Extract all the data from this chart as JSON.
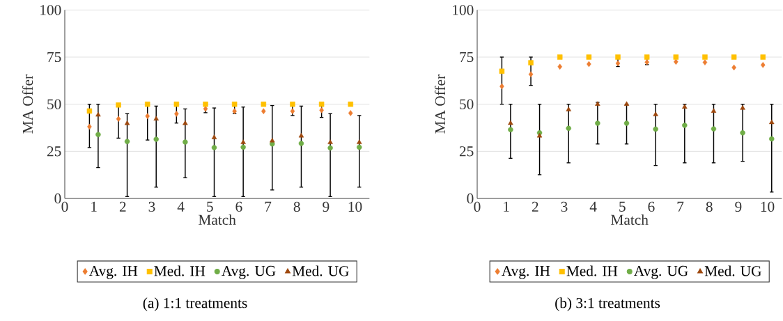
{
  "chart_data": [
    {
      "type": "scatter",
      "xlabel": "Match",
      "ylabel": "MA Offer",
      "xlim": [
        0,
        10.5
      ],
      "ylim": [
        0,
        100
      ],
      "xticks": [
        0,
        1,
        2,
        3,
        4,
        5,
        6,
        7,
        8,
        9,
        10
      ],
      "yticks": [
        0,
        25,
        50,
        75,
        100
      ],
      "grid": "y",
      "legend": "bottom",
      "annotations": [
        "(a) 1:1 treatments"
      ],
      "series": [
        {
          "name": "Avg. IH",
          "color": "#ed7d31",
          "marker": "diamond",
          "x": [
            0.85,
            1.85,
            2.85,
            3.85,
            4.85,
            5.85,
            6.85,
            7.85,
            8.85,
            9.85
          ],
          "values": [
            38.1,
            42.2,
            43.7,
            44.9,
            47.6,
            46.3,
            46.3,
            46.3,
            46.8,
            45.3
          ],
          "errors": [
            [
              27,
              50
            ],
            [
              32,
              50
            ],
            [
              31,
              50
            ],
            [
              40,
              50
            ],
            [
              45.5,
              50
            ],
            [
              45,
              50
            ],
            null,
            [
              44,
              50
            ],
            [
              43,
              50
            ],
            null
          ]
        },
        {
          "name": "Med. IH",
          "color": "#ffc000",
          "marker": "square",
          "x": [
            0.85,
            1.85,
            2.85,
            3.85,
            4.85,
            5.85,
            6.85,
            7.85,
            8.85,
            9.85
          ],
          "values": [
            46.4,
            49.6,
            50,
            50,
            50,
            50,
            50,
            50,
            50,
            50
          ]
        },
        {
          "name": "Avg. UG",
          "color": "#70ad47",
          "marker": "circle",
          "x": [
            1.15,
            2.15,
            3.15,
            4.15,
            5.15,
            6.15,
            7.15,
            8.15,
            9.15,
            10.15
          ],
          "values": [
            33.9,
            30.2,
            31.4,
            29.9,
            27.0,
            27.2,
            28.9,
            29.2,
            26.8,
            27.2
          ],
          "errors": [
            [
              16.4,
              50
            ],
            [
              1,
              45
            ],
            [
              6,
              49
            ],
            [
              11,
              47.5
            ],
            [
              1,
              48
            ],
            [
              1,
              48.5
            ],
            [
              4.5,
              49.3
            ],
            [
              6,
              49
            ],
            [
              1,
              45
            ],
            [
              6,
              44
            ]
          ]
        },
        {
          "name": "Med. UG",
          "color": "#9e480e",
          "marker": "triangle",
          "x": [
            1.15,
            2.15,
            3.15,
            4.15,
            5.15,
            6.15,
            7.15,
            8.15,
            9.15,
            10.15
          ],
          "values": [
            44.3,
            39.8,
            42.2,
            39.8,
            32.3,
            29.7,
            30.6,
            33.2,
            29.7,
            29.7
          ]
        }
      ]
    },
    {
      "type": "scatter",
      "xlabel": "Match",
      "ylabel": "MA Offer",
      "xlim": [
        0,
        10.5
      ],
      "ylim": [
        0,
        100
      ],
      "xticks": [
        0,
        1,
        2,
        3,
        4,
        5,
        6,
        7,
        8,
        9,
        10
      ],
      "yticks": [
        0,
        25,
        50,
        75,
        100
      ],
      "grid": "y",
      "legend": "bottom",
      "annotations": [
        "(b) 3:1 treatments"
      ],
      "series": [
        {
          "name": "Avg. IH",
          "color": "#ed7d31",
          "marker": "diamond",
          "x": [
            0.85,
            1.85,
            2.85,
            3.85,
            4.85,
            5.85,
            6.85,
            7.85,
            8.85,
            9.85
          ],
          "values": [
            59.5,
            65.9,
            69.9,
            71.3,
            71.7,
            72.3,
            72.5,
            72.2,
            69.5,
            70.8
          ],
          "errors": [
            [
              50,
              75
            ],
            [
              60,
              75
            ],
            null,
            null,
            [
              70,
              75
            ],
            [
              71,
              75
            ],
            null,
            null,
            null,
            null
          ]
        },
        {
          "name": "Med. IH",
          "color": "#ffc000",
          "marker": "square",
          "x": [
            0.85,
            1.85,
            2.85,
            3.85,
            4.85,
            5.85,
            6.85,
            7.85,
            8.85,
            9.85
          ],
          "values": [
            67.5,
            72,
            75,
            75,
            75,
            75,
            75,
            75,
            75,
            75
          ]
        },
        {
          "name": "Avg. UG",
          "color": "#70ad47",
          "marker": "circle",
          "x": [
            1.15,
            2.15,
            3.15,
            4.15,
            5.15,
            6.15,
            7.15,
            8.15,
            9.15,
            10.15
          ],
          "values": [
            36.5,
            34.8,
            37.2,
            39.9,
            39.9,
            36.8,
            38.8,
            36.9,
            34.8,
            31.6
          ],
          "errors": [
            [
              21.3,
              50
            ],
            [
              12.6,
              50
            ],
            [
              18.9,
              50
            ],
            [
              28.9,
              51
            ],
            [
              28.9,
              50
            ],
            [
              17.5,
              50
            ],
            [
              18.9,
              50
            ],
            [
              18.9,
              50
            ],
            [
              19.7,
              50
            ],
            [
              3.4,
              50
            ]
          ]
        },
        {
          "name": "Med. UG",
          "color": "#9e480e",
          "marker": "triangle",
          "x": [
            1.15,
            2.15,
            3.15,
            4.15,
            5.15,
            6.15,
            7.15,
            8.15,
            9.15,
            10.15
          ],
          "values": [
            39.9,
            33.2,
            47.1,
            50,
            50,
            44.5,
            48.5,
            46.3,
            47.9,
            40.3
          ]
        }
      ]
    }
  ]
}
